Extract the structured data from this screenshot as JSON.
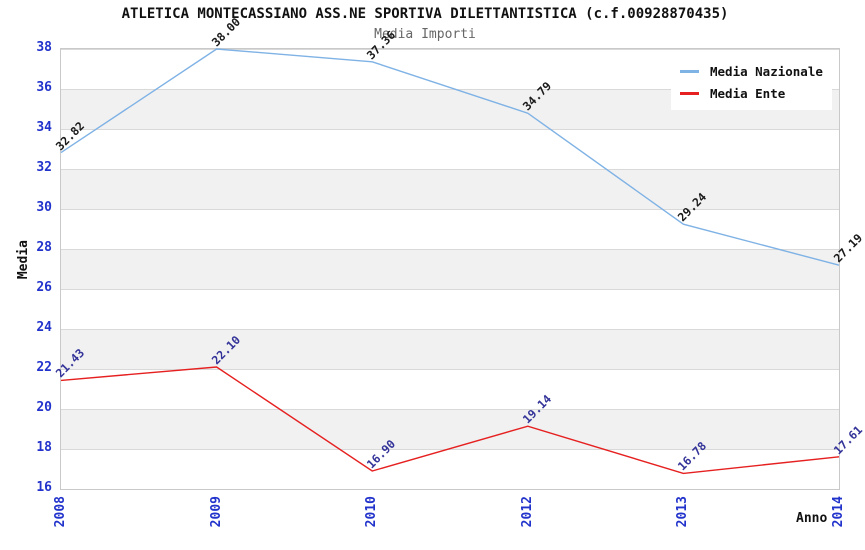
{
  "chart_data": {
    "type": "line",
    "title": "ATLETICA MONTECASSIANO ASS.NE SPORTIVA DILETTANTISTICA (c.f.00928870435)",
    "subtitle": "Media Importi",
    "xlabel": "Anno",
    "ylabel": "Media",
    "categories": [
      "2008",
      "2009",
      "2010",
      "2012",
      "2013",
      "2014"
    ],
    "series": [
      {
        "name": "Media Nazionale",
        "color": "#7fb2e5",
        "label_color": "#1a1a1a",
        "values": [
          32.82,
          38.0,
          37.36,
          34.79,
          29.24,
          27.19
        ],
        "point_labels": [
          "32.82",
          "38.00",
          "37.36",
          "34.79",
          "29.24",
          "27.19"
        ]
      },
      {
        "name": "Media Ente",
        "color": "#e62020",
        "label_color": "#333399",
        "values": [
          21.43,
          22.1,
          16.9,
          19.14,
          16.78,
          17.61
        ],
        "point_labels": [
          "21.43",
          "22.10",
          "16.90",
          "19.14",
          "16.78",
          "17.61"
        ]
      }
    ],
    "ylim": [
      16,
      38
    ],
    "ytick_step": 2,
    "grid": true,
    "legend_position": "top-right",
    "colors": {
      "tick_label": "#2233cc",
      "band_gray": "#f1f1f1",
      "band_white": "#ffffff",
      "gridline": "#d9d9d9",
      "plot_border": "#c9c9c9",
      "title": "#111111",
      "subtitle": "#666666"
    }
  }
}
